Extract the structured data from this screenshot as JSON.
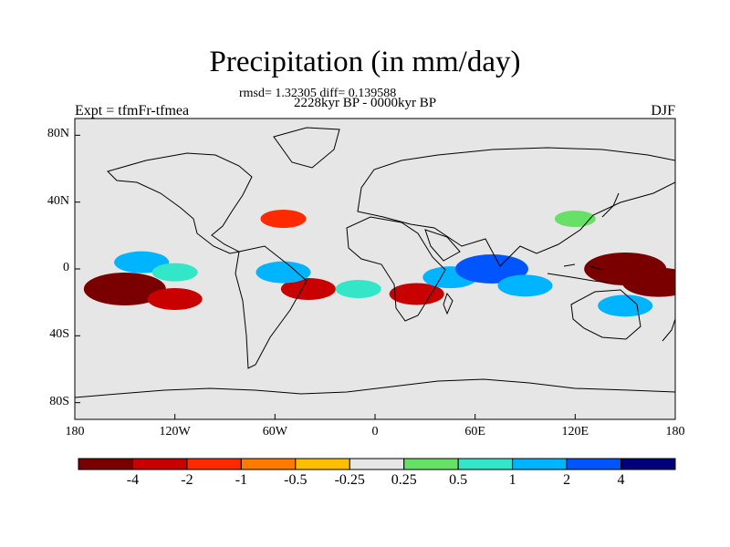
{
  "figure": {
    "title": "Precipitation (in mm/day)",
    "stats": "rmsd= 1.32305 diff= 0.139588",
    "period": "2228kyr BP - 0000kyr BP",
    "experiment": "Expt = tfmFr-tfmea",
    "season": "DJF"
  },
  "chart_data": {
    "type": "heatmap",
    "projection": "cylindrical-equidistant",
    "title": "Precipitation (in mm/day)",
    "xlim": [
      -180,
      180
    ],
    "ylim": [
      -90,
      90
    ],
    "x_ticks": [
      {
        "value": -180,
        "label": "180"
      },
      {
        "value": -120,
        "label": "120W"
      },
      {
        "value": -60,
        "label": "60W"
      },
      {
        "value": 0,
        "label": "0"
      },
      {
        "value": 60,
        "label": "60E"
      },
      {
        "value": 120,
        "label": "120E"
      },
      {
        "value": 180,
        "label": "180"
      }
    ],
    "y_ticks": [
      {
        "value": 80,
        "label": "80N"
      },
      {
        "value": 40,
        "label": "40N"
      },
      {
        "value": 0,
        "label": "0"
      },
      {
        "value": -40,
        "label": "40S"
      },
      {
        "value": -80,
        "label": "80S"
      }
    ],
    "colorbar": {
      "colors": [
        "#7a0000",
        "#c80000",
        "#ff2a00",
        "#ff7a00",
        "#ffbf00",
        "#e6e6e6",
        "#66e066",
        "#33e6c8",
        "#00b4ff",
        "#0055ff",
        "#00007a"
      ],
      "tick_labels": [
        "-4",
        "-2",
        "-1",
        "-0.5",
        "-0.25",
        "0.25",
        "0.5",
        "1",
        "2",
        "4"
      ],
      "levels": [
        -4,
        -2,
        -1,
        -0.5,
        -0.25,
        0.25,
        0.5,
        1,
        2,
        4
      ]
    },
    "anomaly_features": [
      {
        "lon": -150,
        "lat": -12,
        "value": -5
      },
      {
        "lon": -120,
        "lat": -18,
        "value": -2
      },
      {
        "lon": -140,
        "lat": 4,
        "value": 2
      },
      {
        "lon": -120,
        "lat": -2,
        "value": 1
      },
      {
        "lon": -40,
        "lat": -12,
        "value": -2
      },
      {
        "lon": -55,
        "lat": -2,
        "value": 2
      },
      {
        "lon": -10,
        "lat": -12,
        "value": 1
      },
      {
        "lon": 25,
        "lat": -15,
        "value": -2
      },
      {
        "lon": 45,
        "lat": -5,
        "value": 2
      },
      {
        "lon": 70,
        "lat": 0,
        "value": 4
      },
      {
        "lon": 90,
        "lat": -10,
        "value": 2
      },
      {
        "lon": 150,
        "lat": 0,
        "value": -5
      },
      {
        "lon": 170,
        "lat": -8,
        "value": -4
      },
      {
        "lon": 150,
        "lat": -22,
        "value": 2
      },
      {
        "lon": -55,
        "lat": 30,
        "value": -1
      },
      {
        "lon": 120,
        "lat": 30,
        "value": 0.5
      }
    ]
  }
}
